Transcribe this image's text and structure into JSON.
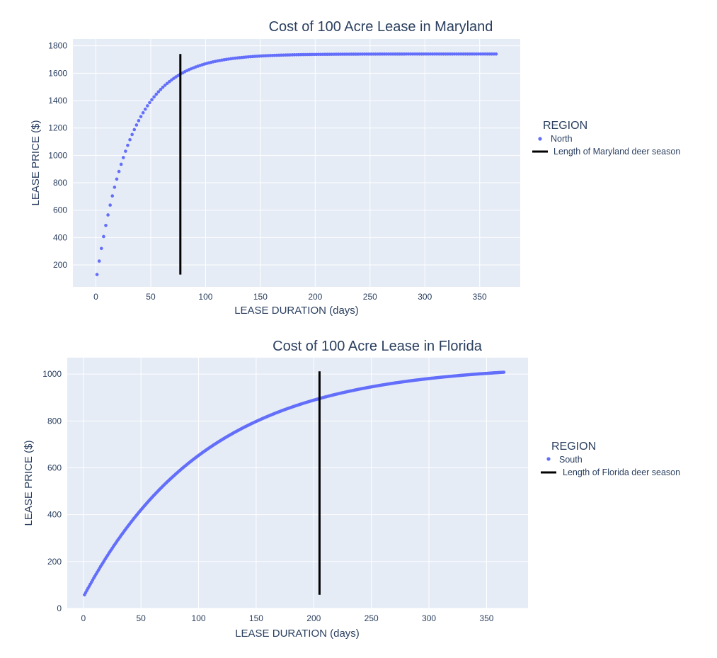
{
  "chart_data": [
    {
      "type": "scatter",
      "title": "Cost of 100 Acre Lease in Maryland",
      "xlabel": "LEASE DURATION (days)",
      "ylabel": "LEASE PRICE ($)",
      "xlim": [
        -21,
        387
      ],
      "ylim": [
        40,
        1850
      ],
      "xticks": [
        0,
        50,
        100,
        150,
        200,
        250,
        300,
        350
      ],
      "yticks": [
        200,
        400,
        600,
        800,
        1000,
        1200,
        1400,
        1600,
        1800
      ],
      "grid": true,
      "legend_title": "REGION",
      "legend_position": "right",
      "model": {
        "x_start": 1,
        "x_end": 365,
        "x_step": 2,
        "y_max": 1740,
        "y_initial": 130,
        "decay": 0.0315
      },
      "series": [
        {
          "name": "North",
          "kind": "markers",
          "color": "#636efa"
        },
        {
          "name": "Length of Maryland deer season",
          "kind": "line",
          "color": "#000000",
          "x": [
            77,
            77
          ],
          "y": [
            130,
            1740
          ]
        }
      ]
    },
    {
      "type": "scatter",
      "title": "Cost of 100 Acre Lease in Florida",
      "xlabel": "LEASE DURATION (days)",
      "ylabel": "LEASE PRICE ($)",
      "xlim": [
        -14,
        386
      ],
      "ylim": [
        0,
        1070
      ],
      "xticks": [
        0,
        50,
        100,
        150,
        200,
        250,
        300,
        350
      ],
      "yticks": [
        0,
        200,
        400,
        600,
        800,
        1000
      ],
      "grid": true,
      "legend_title": "REGION",
      "legend_position": "right",
      "model": {
        "x_start": 1,
        "x_end": 365,
        "x_step": 1,
        "y_max": 1040,
        "y_initial": 58,
        "decay": 0.0094
      },
      "series": [
        {
          "name": "South",
          "kind": "markers",
          "color": "#636efa"
        },
        {
          "name": "Length of Florida deer season",
          "kind": "line",
          "color": "#000000",
          "x": [
            205,
            205
          ],
          "y": [
            58,
            1012
          ]
        }
      ]
    }
  ]
}
